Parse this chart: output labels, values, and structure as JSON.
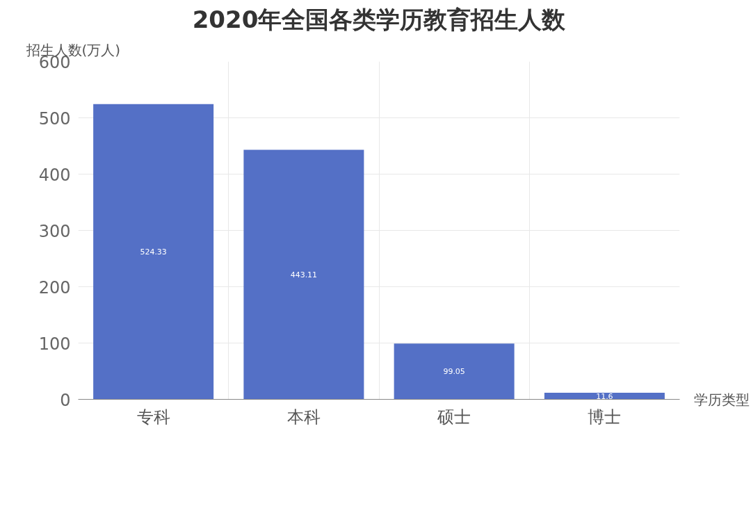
{
  "chart_data": {
    "type": "bar",
    "title": "2020年全国各类学历教育招生人数",
    "ylabel": "招生人数(万人)",
    "xlabel": "学历类型",
    "categories": [
      "专科",
      "本科",
      "硕士",
      "博士"
    ],
    "values": [
      524.33,
      443.11,
      99.05,
      11.6
    ],
    "color": "#5470c6",
    "ylim": [
      0,
      600
    ],
    "yticks": [
      0,
      100,
      200,
      300,
      400,
      500,
      600
    ],
    "grid": true,
    "data_labels": true
  }
}
